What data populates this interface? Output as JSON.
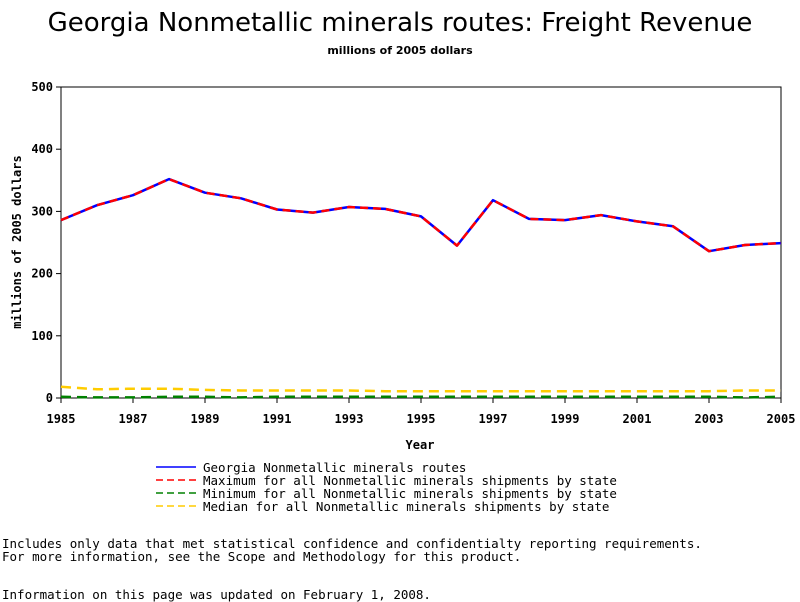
{
  "chart_data": {
    "type": "line",
    "title": "Georgia Nonmetallic minerals routes: Freight Revenue",
    "subtitle": "millions of 2005 dollars",
    "xlabel": "Year",
    "ylabel": "millions of 2005 dollars",
    "xlim": [
      1985,
      2005
    ],
    "ylim": [
      0,
      500
    ],
    "x_ticks": [
      1985,
      1987,
      1989,
      1991,
      1993,
      1995,
      1997,
      1999,
      2001,
      2003,
      2005
    ],
    "y_ticks": [
      0,
      100,
      200,
      300,
      400,
      500
    ],
    "grid": false,
    "legend_position": "bottom",
    "x": [
      1985,
      1986,
      1987,
      1988,
      1989,
      1990,
      1991,
      1992,
      1993,
      1994,
      1995,
      1996,
      1997,
      1998,
      1999,
      2000,
      2001,
      2002,
      2003,
      2004,
      2005
    ],
    "series": [
      {
        "name": "Georgia Nonmetallic minerals routes",
        "color": "#0000ff",
        "style": "solid",
        "values": [
          286,
          310,
          326,
          352,
          330,
          321,
          303,
          298,
          307,
          304,
          292,
          245,
          318,
          288,
          286,
          294,
          284,
          276,
          236,
          246,
          249
        ]
      },
      {
        "name": "Maximum for all Nonmetallic minerals shipments by state",
        "color": "#ff0000",
        "style": "dashed",
        "values": [
          286,
          310,
          326,
          352,
          330,
          321,
          303,
          298,
          307,
          304,
          292,
          245,
          318,
          288,
          286,
          294,
          284,
          276,
          236,
          246,
          249
        ]
      },
      {
        "name": "Minimum for all Nonmetallic minerals shipments by state",
        "color": "#008000",
        "style": "dashed",
        "values": [
          2,
          1,
          1,
          2,
          2,
          1,
          2,
          2,
          2,
          2,
          2,
          2,
          2,
          2,
          2,
          2,
          2,
          2,
          2,
          1,
          2
        ]
      },
      {
        "name": "Median for all Nonmetallic minerals shipments by state",
        "color": "#ffcc00",
        "style": "dashed",
        "values": [
          18,
          14,
          15,
          15,
          13,
          12,
          12,
          12,
          12,
          11,
          11,
          11,
          11,
          11,
          11,
          11,
          11,
          11,
          11,
          12,
          12
        ]
      }
    ]
  },
  "notes": {
    "line1": "Includes only data that met statistical confidence and confidentialty reporting requirements.",
    "line2": "For more information, see the Scope and Methodology for this product.",
    "updated": "Information on this page was updated on February 1, 2008."
  }
}
